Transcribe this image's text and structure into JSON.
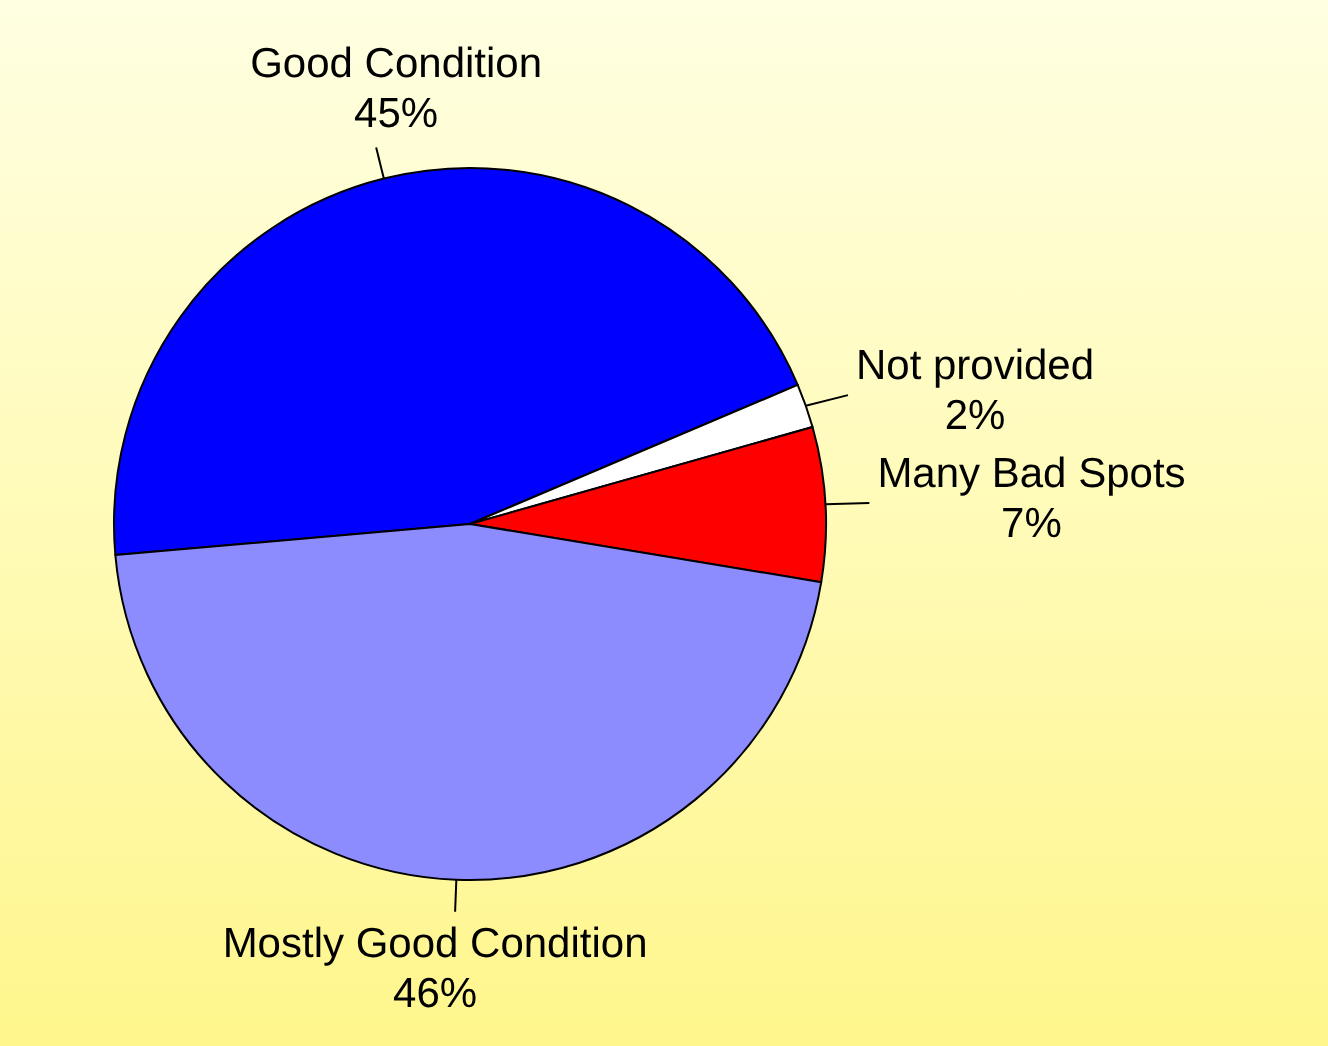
{
  "chart_data": {
    "type": "pie",
    "categories": [
      "Good Condition",
      "Not provided",
      "Many Bad Spots",
      "Mostly Good Condition"
    ],
    "values": [
      45,
      2,
      7,
      46
    ],
    "colors": [
      "#0000ff",
      "#ffffff",
      "#ff0000",
      "#8c8cff"
    ],
    "value_labels": [
      "45%",
      "2%",
      "7%",
      "46%"
    ]
  }
}
